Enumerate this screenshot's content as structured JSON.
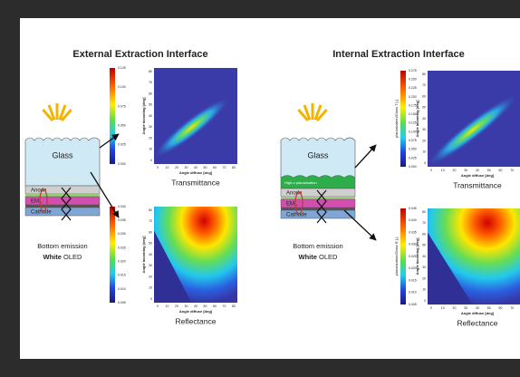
{
  "external": {
    "title": "External Extraction Interface",
    "stack": {
      "layers": [
        "Glass",
        "Anode",
        "EML",
        "Cathode"
      ],
      "caption": "Bottom emission",
      "device_bold": "White",
      "device": "OLED"
    },
    "transmittance": {
      "label": "Transmittance",
      "colorbar_ticks": [
        "0.125",
        "0.100",
        "0.075",
        "0.050",
        "0.025",
        "0.000"
      ],
      "x_label": "Angle diffuse [deg]",
      "y_label": "Angle incoming [deg]",
      "x_ticks": [
        "0",
        "10",
        "20",
        "30",
        "40",
        "50",
        "60",
        "70",
        "80"
      ],
      "y_ticks": [
        "80",
        "70",
        "60",
        "50",
        "40",
        "30",
        "20",
        "10",
        "0"
      ]
    },
    "reflectance": {
      "label": "Reflectance",
      "colorbar_ticks": [
        "0.040",
        "0.035",
        "0.030",
        "0.025",
        "0.020",
        "0.015",
        "0.010",
        "0.005"
      ],
      "x_label": "Angle diffuse [deg]",
      "y_label": "Angle incoming [deg]",
      "x_ticks": [
        "0",
        "10",
        "20",
        "30",
        "40",
        "50",
        "60",
        "70",
        "80"
      ],
      "y_ticks": [
        "80",
        "70",
        "60",
        "50",
        "40",
        "30",
        "20",
        "10",
        "0"
      ]
    }
  },
  "internal": {
    "title": "Internal Extraction Interface",
    "stack": {
      "layers": [
        "Glass",
        "High-n planarization",
        "Anode",
        "EML",
        "Cathode"
      ],
      "caption": "Bottom emission",
      "device_bold": "White",
      "device": "OLED"
    },
    "transmittance": {
      "label": "Transmittance",
      "side_label": "planarization/Glass T [-]",
      "colorbar_ticks": [
        "0.275",
        "0.250",
        "0.225",
        "0.200",
        "0.175",
        "0.150",
        "0.125",
        "0.100",
        "0.075",
        "0.050",
        "0.025",
        "0.000"
      ],
      "x_label": "Angle diffuse [deg]",
      "y_label": "Angle incoming [deg]",
      "x_ticks": [
        "0",
        "10",
        "20",
        "30",
        "40",
        "50",
        "60",
        "70",
        "80"
      ],
      "y_ticks": [
        "80",
        "70",
        "60",
        "50",
        "40",
        "30",
        "20",
        "10",
        "0"
      ]
    },
    "reflectance": {
      "label": "Reflectance",
      "side_label": "planarization/Glass R [-]",
      "colorbar_ticks": [
        "0.045",
        "0.040",
        "0.035",
        "0.030",
        "0.025",
        "0.020",
        "0.015",
        "0.010",
        "0.005"
      ],
      "x_label": "Angle diffuse [deg]",
      "y_label": "Angle incoming [deg]",
      "x_ticks": [
        "0",
        "10",
        "20",
        "30",
        "40",
        "50",
        "60",
        "70",
        "80"
      ],
      "y_ticks": [
        "80",
        "70",
        "60",
        "50",
        "40",
        "30",
        "20",
        "10",
        "0"
      ]
    }
  }
}
